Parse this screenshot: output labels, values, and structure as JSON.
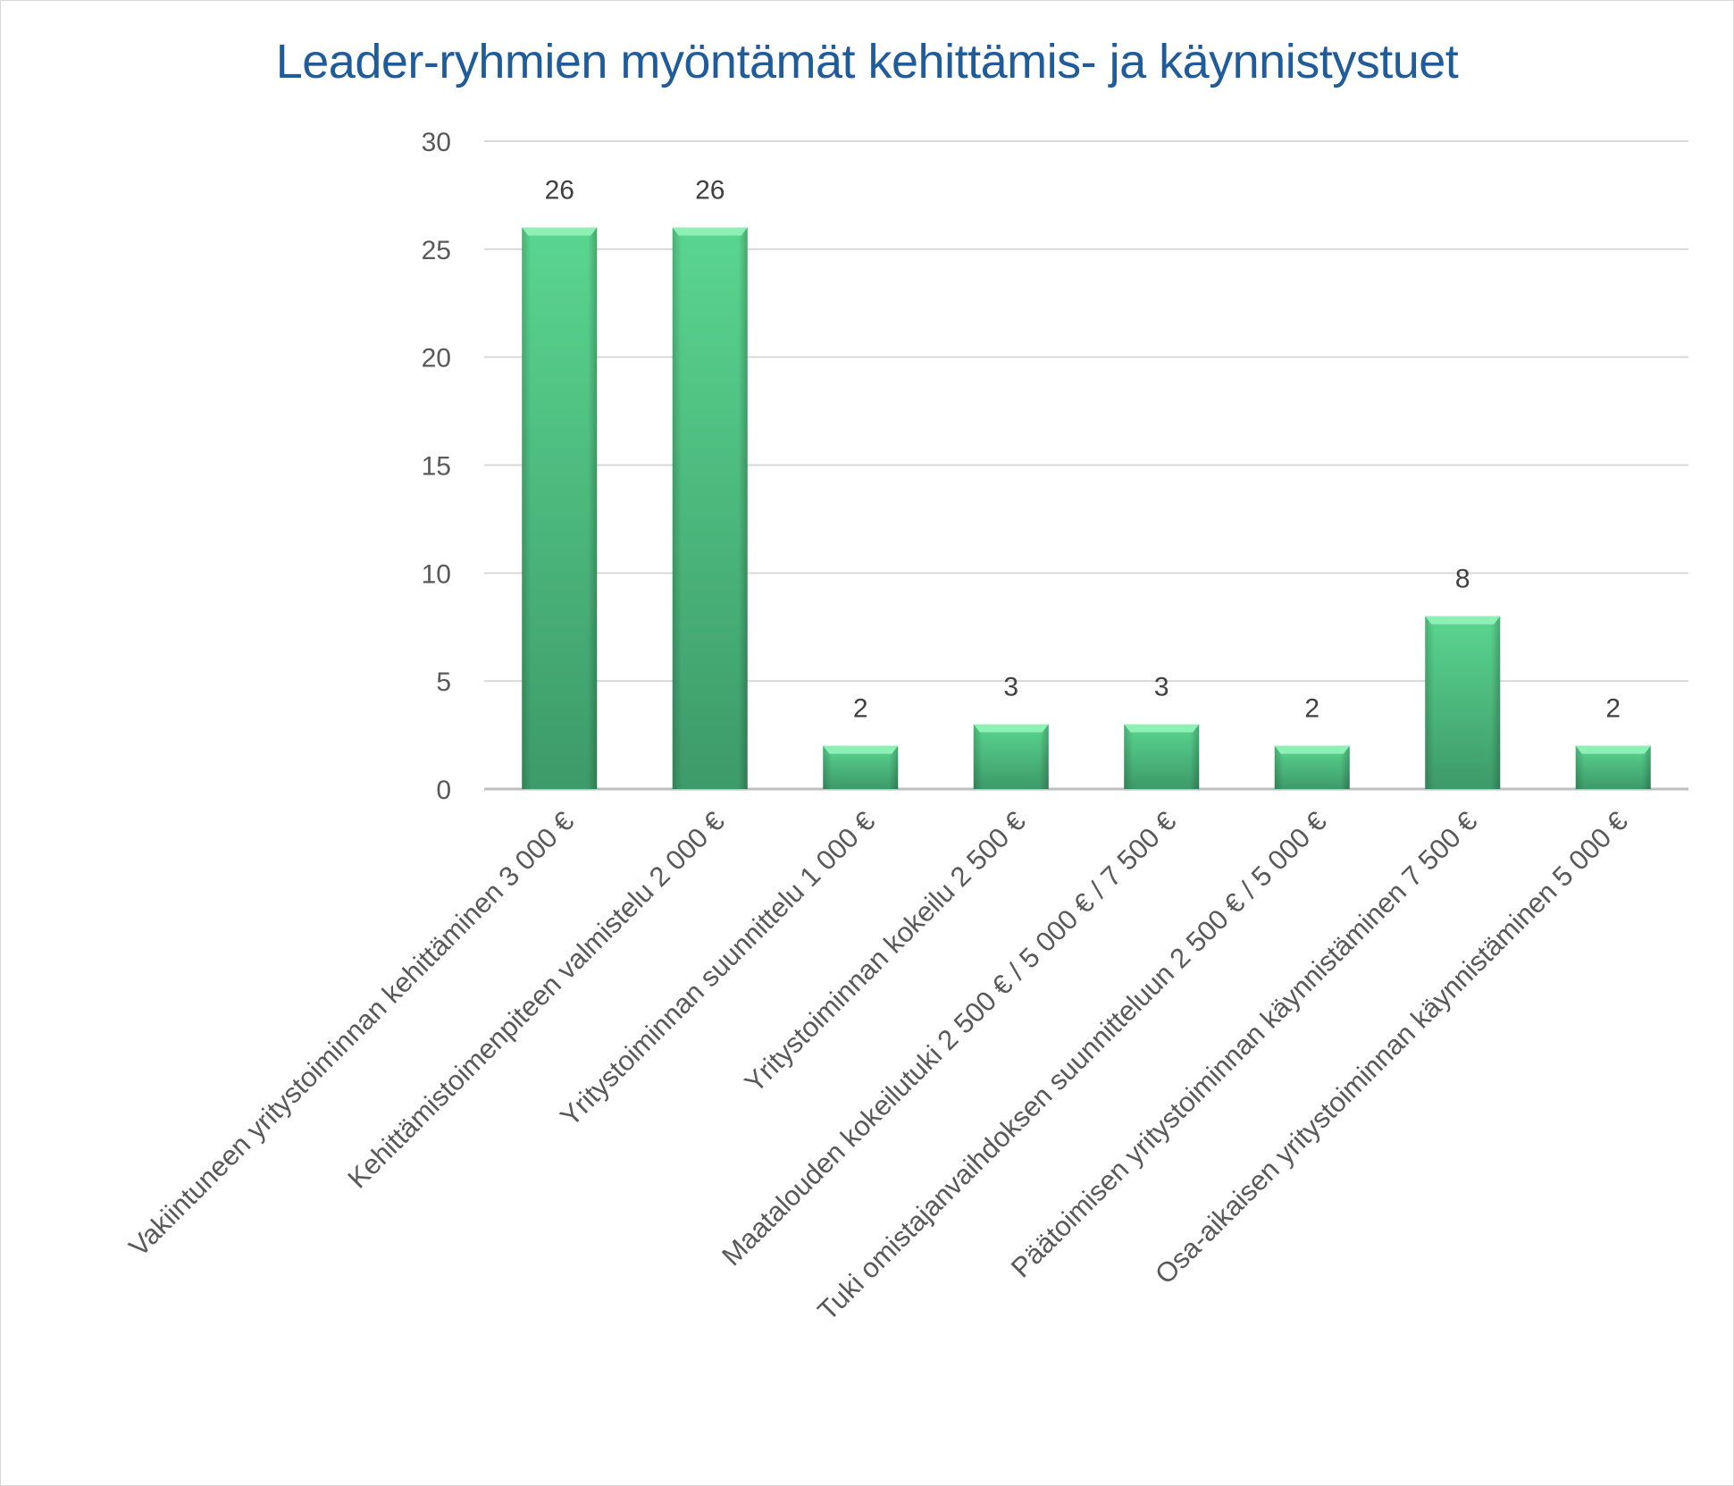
{
  "chart_data": {
    "type": "bar",
    "title": "Leader-ryhmien myöntämät kehittämis- ja käynnistystuet",
    "xlabel": "",
    "ylabel": "",
    "ylim": [
      0,
      30
    ],
    "yticks": [
      0,
      5,
      10,
      15,
      20,
      25,
      30
    ],
    "grid": true,
    "legend": "none",
    "categories": [
      "Vakiintuneen yritystoiminnan kehittäminen 3 000 €",
      "Kehittämistoimenpiteen valmistelu 2 000 €",
      "Yritystoiminnan suunnittelu 1 000 €",
      "Yritystoiminnan kokeilu 2 500 €",
      "Maatalouden kokeilutuki 2 500 € / 5 000 € / 7 500 €",
      "Tuki omistajanvaihdoksen suunnitteluun 2 500 € / 5 000 €",
      "Päätoimisen yritystoiminnan käynnistäminen 7 500 €",
      "Osa-aikaisen yritystoiminnan käynnistäminen 5 000 €"
    ],
    "values": [
      26,
      26,
      2,
      3,
      3,
      2,
      8,
      2
    ],
    "colors": {
      "bar_light": "#5ad68f",
      "bar_dark": "#3d9a69",
      "bar_top": "#8ff0b6",
      "grid": "#d9d9d9",
      "title": "#1f5c99"
    }
  }
}
